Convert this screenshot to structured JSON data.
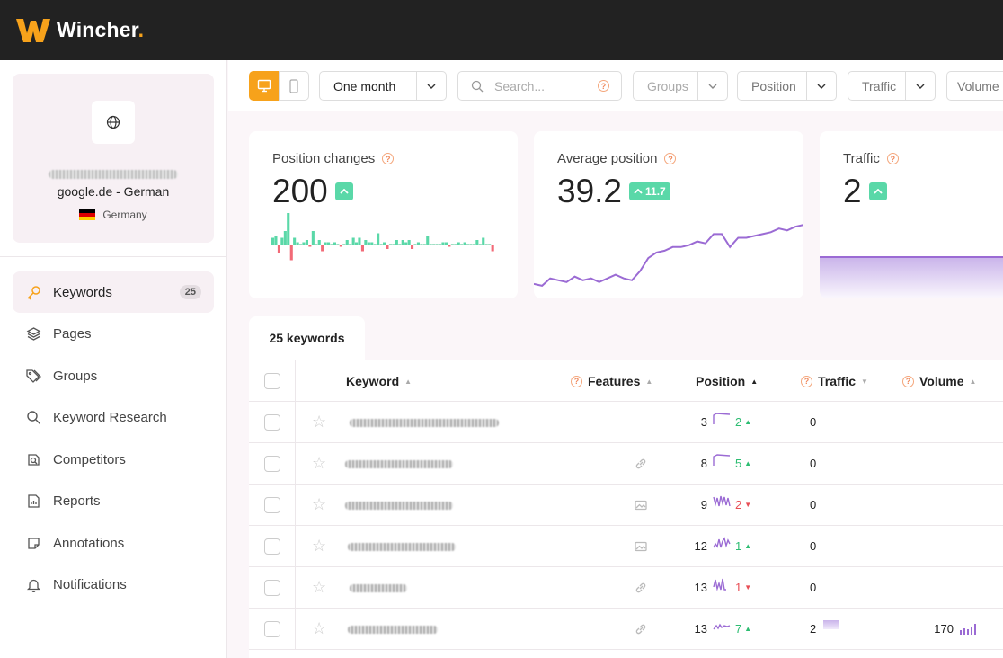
{
  "app": {
    "name": "Wincher",
    "brand_color": "#f7a21b",
    "header_bg": "#222222"
  },
  "site": {
    "name": "google.de - German",
    "country": "Germany",
    "icon": "globe-icon"
  },
  "nav": {
    "items": [
      {
        "label": "Keywords",
        "icon": "key-icon",
        "badge": "25",
        "active": true
      },
      {
        "label": "Pages",
        "icon": "layers-icon"
      },
      {
        "label": "Groups",
        "icon": "tags-icon"
      },
      {
        "label": "Keyword Research",
        "icon": "search-icon"
      },
      {
        "label": "Competitors",
        "icon": "competitors-icon"
      },
      {
        "label": "Reports",
        "icon": "report-icon"
      },
      {
        "label": "Annotations",
        "icon": "note-icon"
      },
      {
        "label": "Notifications",
        "icon": "bell-icon"
      }
    ]
  },
  "toolbar": {
    "period": "One month",
    "search_placeholder": "Search...",
    "groups": "Groups",
    "position": "Position",
    "traffic": "Traffic",
    "volume": "Volume"
  },
  "stats": {
    "position_changes": {
      "title": "Position changes",
      "value": "200"
    },
    "average_position": {
      "title": "Average position",
      "value": "39.2",
      "change": "11.7"
    },
    "traffic": {
      "title": "Traffic",
      "value": "2"
    }
  },
  "chart_data": [
    {
      "type": "bar",
      "series": [
        {
          "values": [
            3,
            4,
            -4,
            3,
            6,
            14,
            -7,
            3,
            1,
            0,
            1,
            2,
            -1,
            6,
            0,
            2,
            -3,
            1,
            1,
            0,
            1,
            0,
            -1,
            0,
            2,
            0,
            3,
            1,
            3,
            -3,
            2,
            1,
            1,
            0,
            5,
            0,
            1,
            -2,
            0,
            0,
            2,
            0,
            2,
            1,
            2,
            -2,
            0,
            1,
            0,
            0,
            4,
            0,
            0,
            0,
            0,
            1,
            1,
            -1,
            0,
            0,
            1,
            0,
            1,
            0,
            0,
            0,
            2,
            0,
            3,
            0,
            0,
            -3
          ]
        }
      ]
    },
    {
      "type": "line",
      "series": [
        {
          "values": [
            44,
            45,
            41,
            42,
            43,
            40,
            42,
            41,
            43,
            41,
            39,
            41,
            42,
            37,
            30,
            27,
            26,
            24,
            24,
            23,
            21,
            22,
            17,
            17,
            24,
            19,
            19,
            18,
            17,
            16,
            14,
            15,
            13,
            12
          ]
        }
      ]
    },
    {
      "type": "area",
      "series": [
        {
          "values": [
            2,
            2,
            2,
            2,
            2,
            2,
            2,
            2,
            2,
            2
          ]
        }
      ]
    }
  ],
  "tabs": {
    "keywords": "25 keywords"
  },
  "table": {
    "headers": {
      "keyword": "Keyword",
      "features": "Features",
      "position": "Position",
      "traffic": "Traffic",
      "volume": "Volume"
    },
    "rows": [
      {
        "feature": "",
        "position": "3",
        "change": "2",
        "direction": "up",
        "traffic": "0",
        "volume": ""
      },
      {
        "feature": "link-icon",
        "position": "8",
        "change": "5",
        "direction": "up",
        "traffic": "0",
        "volume": ""
      },
      {
        "feature": "image-icon",
        "position": "9",
        "change": "2",
        "direction": "down",
        "traffic": "0",
        "volume": ""
      },
      {
        "feature": "image-icon",
        "position": "12",
        "change": "1",
        "direction": "up",
        "traffic": "0",
        "volume": ""
      },
      {
        "feature": "link-icon",
        "position": "13",
        "change": "1",
        "direction": "down",
        "traffic": "0",
        "volume": ""
      },
      {
        "feature": "link-icon",
        "position": "13",
        "change": "7",
        "direction": "up",
        "traffic": "2",
        "volume": "170"
      }
    ]
  }
}
